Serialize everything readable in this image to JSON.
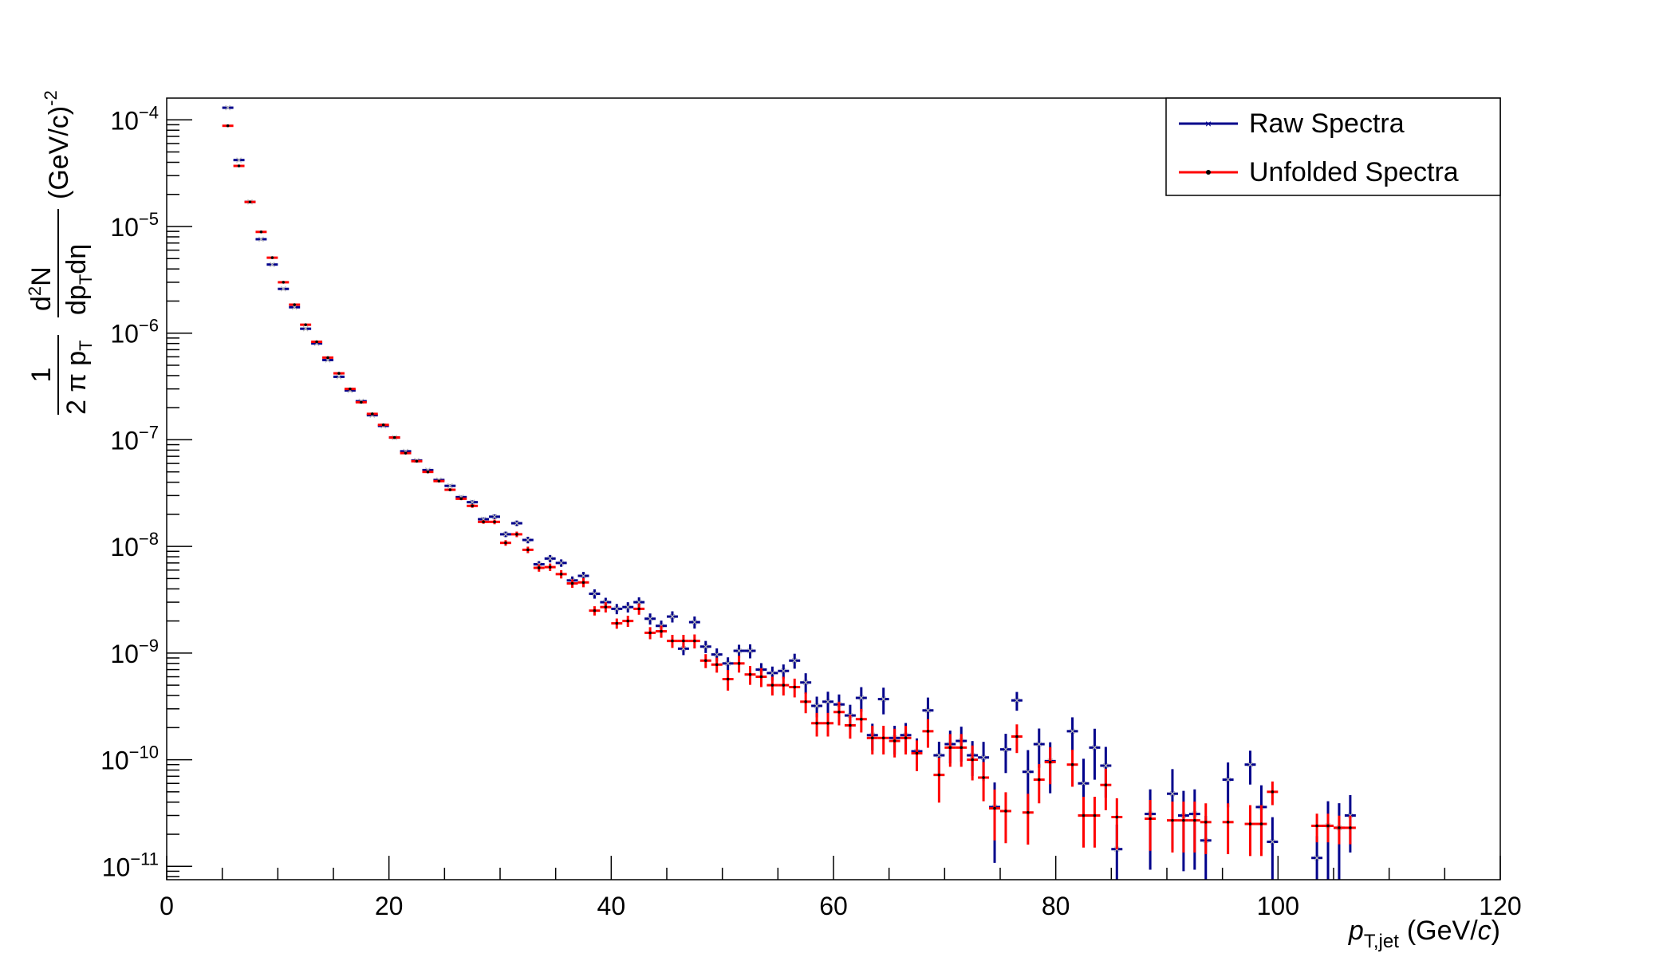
{
  "chart_data": {
    "type": "scatter",
    "xlabel": {
      "main": "p",
      "sub": "T,jet",
      "unit_pre": "(GeV/",
      "unit_it": "c",
      "unit_post": ")"
    },
    "ylabel": {
      "one": "1",
      "den1": "2 π p",
      "den1_sub": "T",
      "d2": "d",
      "d2_sup": "2",
      "N": "N",
      "dp": "dp",
      "dp_sub": "T",
      "deta": "dη",
      "unit": "(GeV/c)",
      "unit_sup": "-2"
    },
    "xlim": [
      0,
      120
    ],
    "ylim": [
      7.5e-12,
      0.00016
    ],
    "yscale": "log",
    "x_ticks": [
      "0",
      "20",
      "40",
      "60",
      "80",
      "100",
      "120"
    ],
    "y_ticks": [
      {
        "base": "10",
        "exp": "−4",
        "value": 0.0001
      },
      {
        "base": "10",
        "exp": "−5",
        "value": 1e-05
      },
      {
        "base": "10",
        "exp": "−6",
        "value": 1e-06
      },
      {
        "base": "10",
        "exp": "−7",
        "value": 1e-07
      },
      {
        "base": "10",
        "exp": "−8",
        "value": 1e-08
      },
      {
        "base": "10",
        "exp": "−9",
        "value": 1e-09
      },
      {
        "base": "10",
        "exp": "−10",
        "value": 1e-10
      },
      {
        "base": "10",
        "exp": "−11",
        "value": 1e-11
      }
    ],
    "legend": {
      "position": "top-right",
      "entries": [
        "Raw Spectra",
        "Unfolded Spectra"
      ]
    },
    "series": [
      {
        "name": "Raw Spectra",
        "color": "#00008b",
        "marker": "cross",
        "points": [
          [
            5.5,
            0.00013,
            0.01
          ],
          [
            6.5,
            4.2e-05,
            0.01
          ],
          [
            7.5,
            1.7e-05,
            0.01
          ],
          [
            8.5,
            7.6e-06,
            0.01
          ],
          [
            9.5,
            4.4e-06,
            0.01
          ],
          [
            10.5,
            2.6e-06,
            0.01
          ],
          [
            11.5,
            1.75e-06,
            0.01
          ],
          [
            12.5,
            1.1e-06,
            0.01
          ],
          [
            13.5,
            8e-07,
            0.01
          ],
          [
            14.5,
            5.6e-07,
            0.01
          ],
          [
            15.5,
            3.9e-07,
            0.01
          ],
          [
            16.5,
            2.9e-07,
            0.01
          ],
          [
            17.5,
            2.3e-07,
            0.01
          ],
          [
            18.5,
            1.7e-07,
            0.01
          ],
          [
            19.5,
            1.35e-07,
            0.01
          ],
          [
            20.5,
            1.05e-07,
            0.01
          ],
          [
            21.5,
            7.8e-08,
            0.01
          ],
          [
            22.5,
            6.4e-08,
            0.01
          ],
          [
            23.5,
            5.2e-08,
            0.02
          ],
          [
            24.5,
            4.2e-08,
            0.02
          ],
          [
            25.5,
            3.7e-08,
            0.03
          ],
          [
            26.5,
            2.9e-08,
            0.03
          ],
          [
            27.5,
            2.6e-08,
            0.04
          ],
          [
            28.5,
            1.8e-08,
            0.04
          ],
          [
            29.5,
            1.9e-08,
            0.05
          ],
          [
            30.5,
            1.3e-08,
            0.06
          ],
          [
            31.5,
            1.65e-08,
            0.06
          ],
          [
            32.5,
            1.15e-08,
            0.07
          ],
          [
            33.5,
            6.8e-09,
            0.07
          ],
          [
            34.5,
            7.7e-09,
            0.08
          ],
          [
            35.5,
            7e-09,
            0.08
          ],
          [
            36.5,
            4.8e-09,
            0.09
          ],
          [
            37.5,
            5.3e-09,
            0.09
          ],
          [
            38.5,
            3.6e-09,
            0.1
          ],
          [
            39.5,
            3e-09,
            0.1
          ],
          [
            40.5,
            2.6e-09,
            0.11
          ],
          [
            41.5,
            2.7e-09,
            0.11
          ],
          [
            42.5,
            3e-09,
            0.11
          ],
          [
            43.5,
            2.1e-09,
            0.12
          ],
          [
            44.5,
            1.8e-09,
            0.12
          ],
          [
            45.5,
            2.2e-09,
            0.12
          ],
          [
            46.5,
            1.1e-09,
            0.13
          ],
          [
            47.5,
            1.95e-09,
            0.13
          ],
          [
            48.5,
            1.15e-09,
            0.13
          ],
          [
            49.5,
            9.7e-10,
            0.14
          ],
          [
            50.5,
            8e-10,
            0.14
          ],
          [
            51.5,
            1.05e-09,
            0.14
          ],
          [
            52.5,
            1.05e-09,
            0.15
          ],
          [
            53.5,
            7e-10,
            0.15
          ],
          [
            54.5,
            6.5e-10,
            0.15
          ],
          [
            55.5,
            6.8e-10,
            0.15
          ],
          [
            56.5,
            8.5e-10,
            0.16
          ],
          [
            57.5,
            5.3e-10,
            0.22
          ],
          [
            58.5,
            3.2e-10,
            0.22
          ],
          [
            59.5,
            3.5e-10,
            0.24
          ],
          [
            60.5,
            3.3e-10,
            0.24
          ],
          [
            61.5,
            2.6e-10,
            0.26
          ],
          [
            62.5,
            3.8e-10,
            0.26
          ],
          [
            63.5,
            1.7e-10,
            0.28
          ],
          [
            64.5,
            3.7e-10,
            0.28
          ],
          [
            65.5,
            1.6e-10,
            0.3
          ],
          [
            66.5,
            1.7e-10,
            0.3
          ],
          [
            67.5,
            1.2e-10,
            0.32
          ],
          [
            68.5,
            2.9e-10,
            0.32
          ],
          [
            69.5,
            1.1e-10,
            0.34
          ],
          [
            70.5,
            1.4e-10,
            0.34
          ],
          [
            71.5,
            1.5e-10,
            0.36
          ],
          [
            72.5,
            1.1e-10,
            0.36
          ],
          [
            73.5,
            1.05e-10,
            0.4
          ],
          [
            74.5,
            3.6e-11,
            0.7
          ],
          [
            75.5,
            1.25e-10,
            0.4
          ],
          [
            76.5,
            3.6e-10,
            0.2
          ],
          [
            77.5,
            7.7e-11,
            0.6
          ],
          [
            78.5,
            1.4e-10,
            0.4
          ],
          [
            79.5,
            9.7e-11,
            0.5
          ],
          [
            81.5,
            1.85e-10,
            0.35
          ],
          [
            82.5,
            6e-11,
            0.7
          ],
          [
            83.5,
            1.3e-10,
            0.5
          ],
          [
            84.5,
            8.8e-11,
            0.5
          ],
          [
            85.5,
            1.45e-11,
            0.7
          ],
          [
            88.5,
            3.1e-11,
            0.7
          ],
          [
            90.5,
            4.8e-11,
            0.7
          ],
          [
            91.5,
            3e-11,
            0.7
          ],
          [
            92.5,
            3.1e-11,
            0.7
          ],
          [
            93.5,
            1.75e-11,
            0.7
          ],
          [
            95.5,
            6.5e-11,
            0.45
          ],
          [
            97.5,
            9e-11,
            0.35
          ],
          [
            98.5,
            3.6e-11,
            0.6
          ],
          [
            99.5,
            1.7e-11,
            0.7
          ],
          [
            103.5,
            1.2e-11,
            0.6
          ],
          [
            104.5,
            2.4e-11,
            0.7
          ],
          [
            105.5,
            2.3e-11,
            0.7
          ],
          [
            106.5,
            3e-11,
            0.55
          ]
        ]
      },
      {
        "name": "Unfolded Spectra",
        "color": "#ff0000",
        "marker": "dot",
        "points": [
          [
            5.5,
            8.8e-05,
            0.01
          ],
          [
            6.5,
            3.7e-05,
            0.01
          ],
          [
            7.5,
            1.7e-05,
            0.01
          ],
          [
            8.5,
            8.9e-06,
            0.01
          ],
          [
            9.5,
            5.1e-06,
            0.01
          ],
          [
            10.5,
            3e-06,
            0.01
          ],
          [
            11.5,
            1.85e-06,
            0.01
          ],
          [
            12.5,
            1.2e-06,
            0.01
          ],
          [
            13.5,
            8.3e-07,
            0.01
          ],
          [
            14.5,
            5.9e-07,
            0.01
          ],
          [
            15.5,
            4.2e-07,
            0.01
          ],
          [
            16.5,
            3e-07,
            0.01
          ],
          [
            17.5,
            2.25e-07,
            0.01
          ],
          [
            18.5,
            1.75e-07,
            0.01
          ],
          [
            19.5,
            1.38e-07,
            0.01
          ],
          [
            20.5,
            1.05e-07,
            0.01
          ],
          [
            21.5,
            7.5e-08,
            0.01
          ],
          [
            22.5,
            6.3e-08,
            0.01
          ],
          [
            23.5,
            5e-08,
            0.02
          ],
          [
            24.5,
            4.1e-08,
            0.02
          ],
          [
            25.5,
            3.4e-08,
            0.03
          ],
          [
            26.5,
            2.8e-08,
            0.03
          ],
          [
            27.5,
            2.4e-08,
            0.04
          ],
          [
            28.5,
            1.7e-08,
            0.04
          ],
          [
            29.5,
            1.7e-08,
            0.05
          ],
          [
            30.5,
            1.08e-08,
            0.06
          ],
          [
            31.5,
            1.3e-08,
            0.06
          ],
          [
            32.5,
            9.3e-09,
            0.07
          ],
          [
            33.5,
            6.3e-09,
            0.08
          ],
          [
            34.5,
            6.4e-09,
            0.08
          ],
          [
            35.5,
            5.5e-09,
            0.09
          ],
          [
            36.5,
            4.5e-09,
            0.09
          ],
          [
            37.5,
            4.6e-09,
            0.1
          ],
          [
            38.5,
            2.5e-09,
            0.1
          ],
          [
            39.5,
            2.7e-09,
            0.11
          ],
          [
            40.5,
            1.9e-09,
            0.11
          ],
          [
            41.5,
            2e-09,
            0.12
          ],
          [
            42.5,
            2.6e-09,
            0.12
          ],
          [
            43.5,
            1.55e-09,
            0.13
          ],
          [
            44.5,
            1.6e-09,
            0.13
          ],
          [
            45.5,
            1.3e-09,
            0.14
          ],
          [
            46.5,
            1.3e-09,
            0.14
          ],
          [
            47.5,
            1.3e-09,
            0.15
          ],
          [
            48.5,
            8.5e-10,
            0.15
          ],
          [
            49.5,
            7.8e-10,
            0.16
          ],
          [
            50.5,
            5.7e-10,
            0.22
          ],
          [
            51.5,
            8e-10,
            0.18
          ],
          [
            52.5,
            6.3e-10,
            0.2
          ],
          [
            53.5,
            6e-10,
            0.2
          ],
          [
            54.5,
            5e-10,
            0.2
          ],
          [
            55.5,
            5e-10,
            0.2
          ],
          [
            56.5,
            4.8e-10,
            0.2
          ],
          [
            57.5,
            3.5e-10,
            0.22
          ],
          [
            58.5,
            2.2e-10,
            0.25
          ],
          [
            59.5,
            2.2e-10,
            0.25
          ],
          [
            60.5,
            2.8e-10,
            0.25
          ],
          [
            61.5,
            2.1e-10,
            0.25
          ],
          [
            62.5,
            2.4e-10,
            0.25
          ],
          [
            63.5,
            1.6e-10,
            0.3
          ],
          [
            64.5,
            1.6e-10,
            0.3
          ],
          [
            65.5,
            1.5e-10,
            0.3
          ],
          [
            66.5,
            1.6e-10,
            0.3
          ],
          [
            67.5,
            1.15e-10,
            0.32
          ],
          [
            68.5,
            1.85e-10,
            0.3
          ],
          [
            69.5,
            7.2e-11,
            0.45
          ],
          [
            70.5,
            1.3e-10,
            0.34
          ],
          [
            71.5,
            1.3e-10,
            0.34
          ],
          [
            72.5,
            1e-10,
            0.36
          ],
          [
            73.5,
            6.8e-11,
            0.4
          ],
          [
            74.5,
            3.5e-11,
            0.5
          ],
          [
            75.5,
            3.3e-11,
            0.5
          ],
          [
            76.5,
            1.65e-10,
            0.3
          ],
          [
            77.5,
            3.2e-11,
            0.5
          ],
          [
            78.5,
            6.5e-11,
            0.4
          ],
          [
            79.5,
            9.5e-11,
            0.38
          ],
          [
            81.5,
            9e-11,
            0.38
          ],
          [
            82.5,
            3e-11,
            0.5
          ],
          [
            83.5,
            3e-11,
            0.5
          ],
          [
            84.5,
            5.8e-11,
            0.42
          ],
          [
            85.5,
            2.9e-11,
            0.5
          ],
          [
            88.5,
            2.8e-11,
            0.5
          ],
          [
            90.5,
            2.7e-11,
            0.5
          ],
          [
            91.5,
            2.7e-11,
            0.5
          ],
          [
            92.5,
            2.7e-11,
            0.5
          ],
          [
            93.5,
            2.6e-11,
            0.5
          ],
          [
            95.5,
            2.6e-11,
            0.5
          ],
          [
            97.5,
            2.5e-11,
            0.5
          ],
          [
            98.5,
            2.5e-11,
            0.5
          ],
          [
            99.5,
            5e-11,
            0.25
          ],
          [
            103.5,
            2.4e-11,
            0.3
          ],
          [
            104.5,
            2.4e-11,
            0.3
          ],
          [
            105.5,
            2.3e-11,
            0.3
          ],
          [
            106.5,
            2.3e-11,
            0.3
          ]
        ]
      }
    ]
  }
}
